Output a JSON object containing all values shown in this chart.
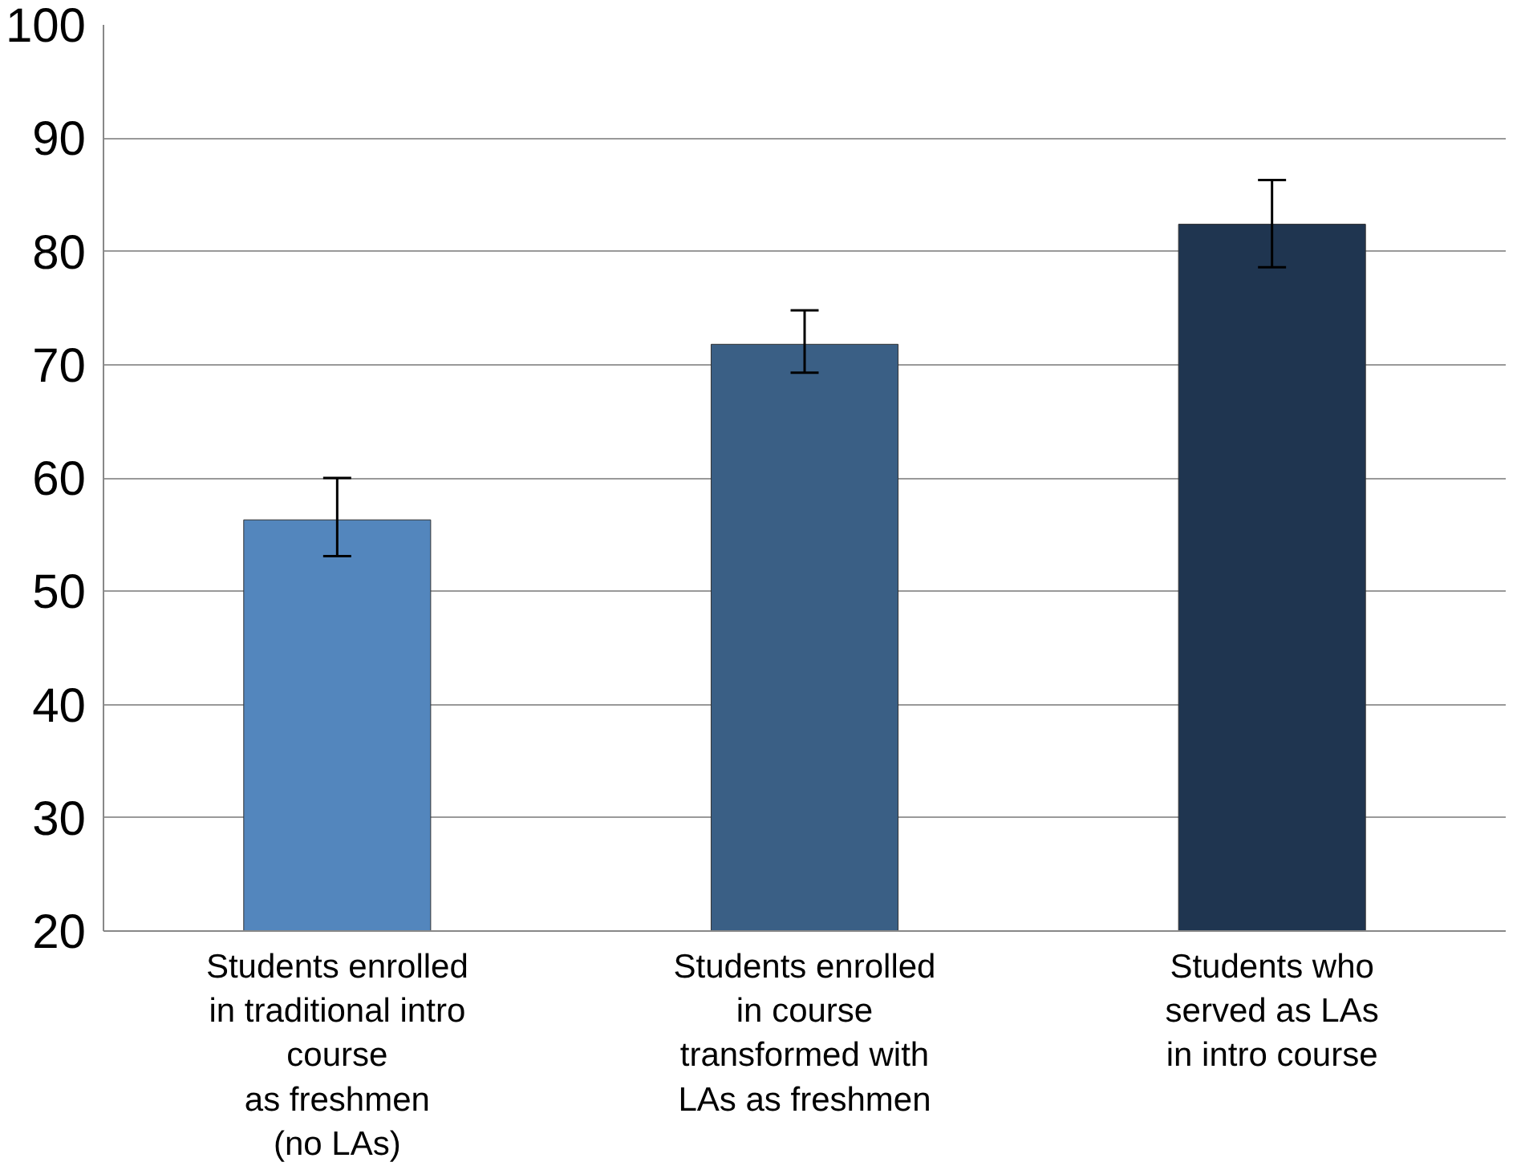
{
  "chart_data": {
    "type": "bar",
    "categories": [
      "Students enrolled\nin traditional intro\ncourse\nas freshmen\n(no LAs)",
      "Students enrolled\nin course\ntransformed with\nLAs as freshmen",
      "Students who\nserved as LAs\nin intro course"
    ],
    "values": [
      56.3,
      71.8,
      82.4
    ],
    "colors": [
      "#5386bd",
      "#3a5f85",
      "#1f3550"
    ],
    "errors": [
      [
        53.1,
        60.0
      ],
      [
        69.3,
        74.8
      ],
      [
        78.6,
        86.3
      ]
    ],
    "ylim": [
      20,
      100
    ],
    "yticks": [
      20,
      30,
      40,
      50,
      60,
      70,
      80,
      90,
      100
    ],
    "grid": "y"
  }
}
